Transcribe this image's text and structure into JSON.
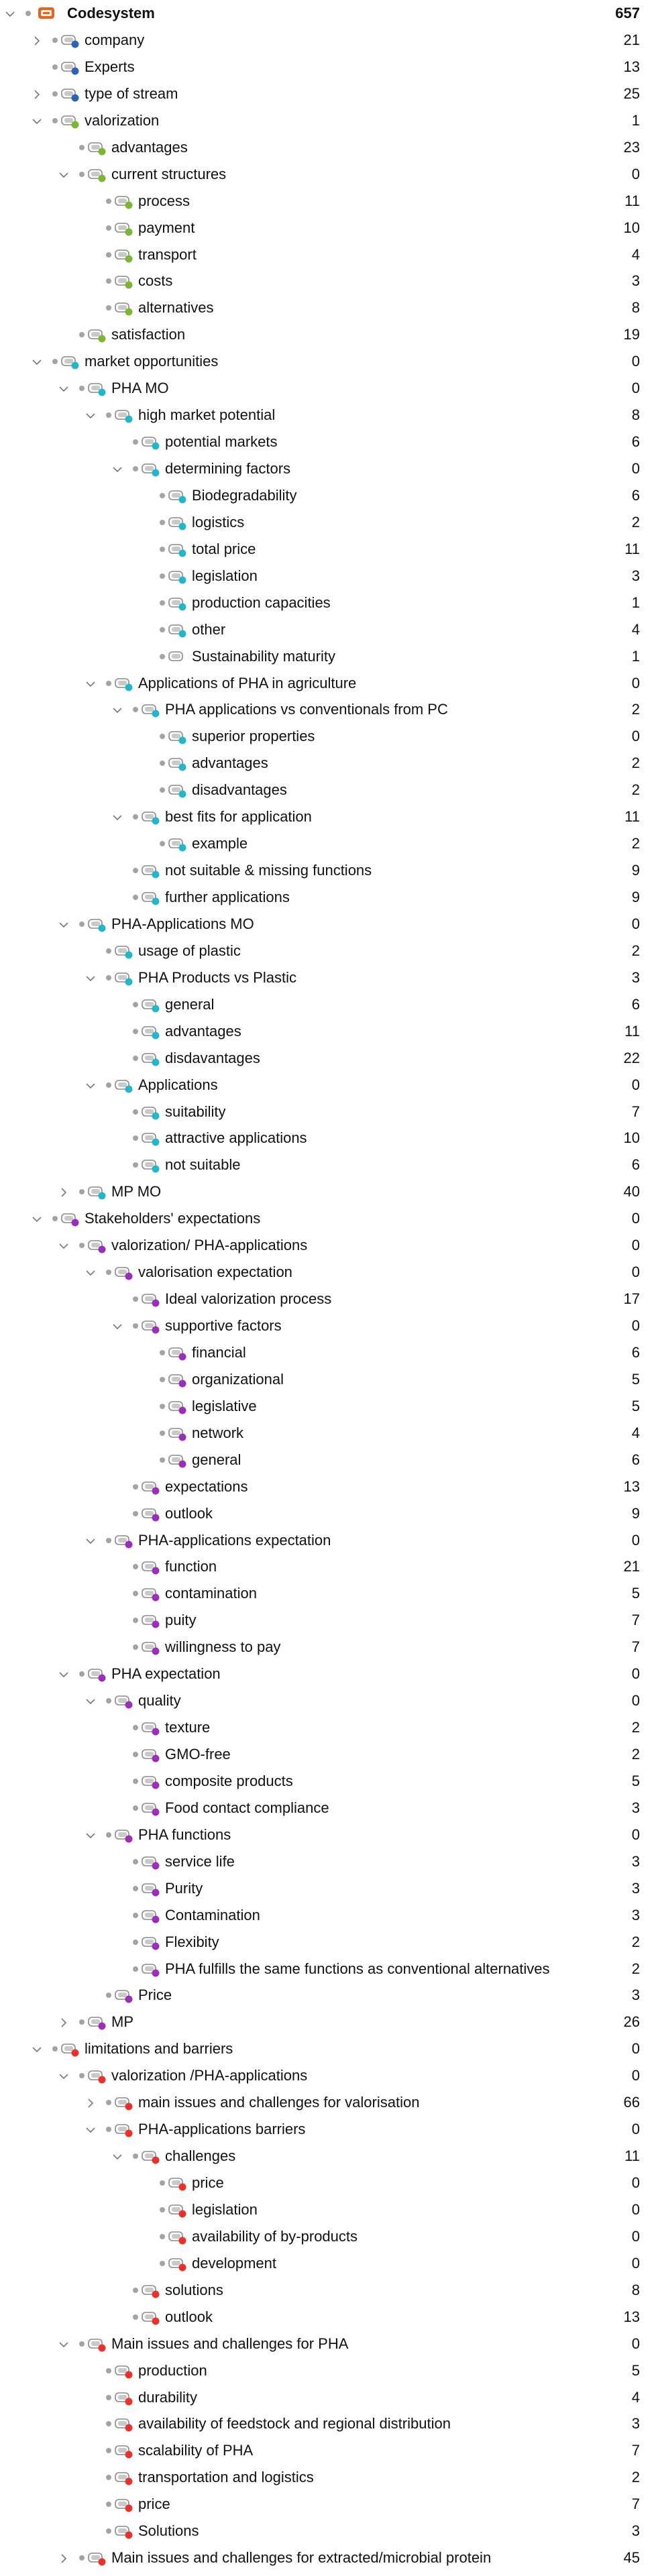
{
  "root": {
    "label": "Codesystem",
    "count": "657"
  },
  "colors": {
    "orange": "#e8641e",
    "blue": "#2f63b8",
    "green": "#7cb82f",
    "cyan": "#22b8c8",
    "purple": "#9b2fb8",
    "red": "#e8322a"
  },
  "items": [
    {
      "level": 1,
      "chevron": "right",
      "label": "company",
      "count": "21",
      "color": "blue"
    },
    {
      "level": 1,
      "chevron": "none",
      "label": "Experts",
      "count": "13",
      "color": "blue"
    },
    {
      "level": 1,
      "chevron": "right",
      "label": "type of stream",
      "count": "25",
      "color": "blue"
    },
    {
      "level": 1,
      "chevron": "down",
      "label": "valorization",
      "count": "1",
      "color": "green"
    },
    {
      "level": 2,
      "chevron": "none",
      "label": "advantages",
      "count": "23",
      "color": "green"
    },
    {
      "level": 2,
      "chevron": "down",
      "label": "current structures",
      "count": "0",
      "color": "green"
    },
    {
      "level": 3,
      "chevron": "none",
      "label": "process",
      "count": "11",
      "color": "green"
    },
    {
      "level": 3,
      "chevron": "none",
      "label": "payment",
      "count": "10",
      "color": "green"
    },
    {
      "level": 3,
      "chevron": "none",
      "label": "transport",
      "count": "4",
      "color": "green"
    },
    {
      "level": 3,
      "chevron": "none",
      "label": "costs",
      "count": "3",
      "color": "green"
    },
    {
      "level": 3,
      "chevron": "none",
      "label": "alternatives",
      "count": "8",
      "color": "green"
    },
    {
      "level": 2,
      "chevron": "none",
      "label": "satisfaction",
      "count": "19",
      "color": "green"
    },
    {
      "level": 1,
      "chevron": "down",
      "label": "market opportunities",
      "count": "0",
      "color": "cyan"
    },
    {
      "level": 2,
      "chevron": "down",
      "label": "PHA MO",
      "count": "0",
      "color": "cyan"
    },
    {
      "level": 3,
      "chevron": "down",
      "label": "high market potential",
      "count": "8",
      "color": "cyan"
    },
    {
      "level": 4,
      "chevron": "none",
      "label": "potential markets",
      "count": "6",
      "color": "cyan"
    },
    {
      "level": 4,
      "chevron": "down",
      "label": "determining factors",
      "count": "0",
      "color": "cyan"
    },
    {
      "level": 5,
      "chevron": "none",
      "label": "Biodegradability",
      "count": "6",
      "color": "cyan"
    },
    {
      "level": 5,
      "chevron": "none",
      "label": "logistics",
      "count": "2",
      "color": "cyan"
    },
    {
      "level": 5,
      "chevron": "none",
      "label": "total price",
      "count": "11",
      "color": "cyan"
    },
    {
      "level": 5,
      "chevron": "none",
      "label": "legislation",
      "count": "3",
      "color": "cyan"
    },
    {
      "level": 5,
      "chevron": "none",
      "label": "production capacities",
      "count": "1",
      "color": "cyan"
    },
    {
      "level": 5,
      "chevron": "none",
      "label": "other",
      "count": "4",
      "color": "cyan"
    },
    {
      "level": 5,
      "chevron": "none",
      "label": "Sustainability maturity",
      "count": "1",
      "color": "none"
    },
    {
      "level": 3,
      "chevron": "down",
      "label": "Applications of PHA in agriculture",
      "count": "0",
      "color": "cyan"
    },
    {
      "level": 4,
      "chevron": "down",
      "label": "PHA applications vs conventionals from PC",
      "count": "2",
      "color": "cyan"
    },
    {
      "level": 5,
      "chevron": "none",
      "label": "superior properties",
      "count": "0",
      "color": "cyan"
    },
    {
      "level": 5,
      "chevron": "none",
      "label": "advantages",
      "count": "2",
      "color": "cyan"
    },
    {
      "level": 5,
      "chevron": "none",
      "label": "disadvantages",
      "count": "2",
      "color": "cyan"
    },
    {
      "level": 4,
      "chevron": "down",
      "label": "best fits for application",
      "count": "11",
      "color": "cyan"
    },
    {
      "level": 5,
      "chevron": "none",
      "label": "example",
      "count": "2",
      "color": "cyan"
    },
    {
      "level": 4,
      "chevron": "none",
      "label": "not suitable & missing functions",
      "count": "9",
      "color": "cyan"
    },
    {
      "level": 4,
      "chevron": "none",
      "label": "further applications",
      "count": "9",
      "color": "cyan"
    },
    {
      "level": 2,
      "chevron": "down",
      "label": "PHA-Applications MO",
      "count": "0",
      "color": "cyan"
    },
    {
      "level": 3,
      "chevron": "none",
      "label": "usage of plastic",
      "count": "2",
      "color": "cyan"
    },
    {
      "level": 3,
      "chevron": "down",
      "label": "PHA Products vs Plastic",
      "count": "3",
      "color": "cyan"
    },
    {
      "level": 4,
      "chevron": "none",
      "label": "general",
      "count": "6",
      "color": "cyan"
    },
    {
      "level": 4,
      "chevron": "none",
      "label": "advantages",
      "count": "11",
      "color": "cyan"
    },
    {
      "level": 4,
      "chevron": "none",
      "label": "disdavantages",
      "count": "22",
      "color": "cyan"
    },
    {
      "level": 3,
      "chevron": "down",
      "label": "Applications",
      "count": "0",
      "color": "cyan"
    },
    {
      "level": 4,
      "chevron": "none",
      "label": "suitability",
      "count": "7",
      "color": "cyan"
    },
    {
      "level": 4,
      "chevron": "none",
      "label": "attractive applications",
      "count": "10",
      "color": "cyan"
    },
    {
      "level": 4,
      "chevron": "none",
      "label": "not suitable",
      "count": "6",
      "color": "cyan"
    },
    {
      "level": 2,
      "chevron": "right",
      "label": "MP MO",
      "count": "40",
      "color": "cyan"
    },
    {
      "level": 1,
      "chevron": "down",
      "label": "Stakeholders' expectations",
      "count": "0",
      "color": "purple"
    },
    {
      "level": 2,
      "chevron": "down",
      "label": "valorization/ PHA-applications",
      "count": "0",
      "color": "purple"
    },
    {
      "level": 3,
      "chevron": "down",
      "label": "valorisation expectation",
      "count": "0",
      "color": "purple"
    },
    {
      "level": 4,
      "chevron": "none",
      "label": "Ideal valorization process",
      "count": "17",
      "color": "purple"
    },
    {
      "level": 4,
      "chevron": "down",
      "label": "supportive factors",
      "count": "0",
      "color": "purple"
    },
    {
      "level": 5,
      "chevron": "none",
      "label": "financial",
      "count": "6",
      "color": "purple"
    },
    {
      "level": 5,
      "chevron": "none",
      "label": "organizational",
      "count": "5",
      "color": "purple"
    },
    {
      "level": 5,
      "chevron": "none",
      "label": "legislative",
      "count": "5",
      "color": "purple"
    },
    {
      "level": 5,
      "chevron": "none",
      "label": "network",
      "count": "4",
      "color": "purple"
    },
    {
      "level": 5,
      "chevron": "none",
      "label": "general",
      "count": "6",
      "color": "purple"
    },
    {
      "level": 4,
      "chevron": "none",
      "label": "expectations",
      "count": "13",
      "color": "purple"
    },
    {
      "level": 4,
      "chevron": "none",
      "label": "outlook",
      "count": "9",
      "color": "purple"
    },
    {
      "level": 3,
      "chevron": "down",
      "label": "PHA-applications expectation",
      "count": "0",
      "color": "purple"
    },
    {
      "level": 4,
      "chevron": "none",
      "label": "function",
      "count": "21",
      "color": "purple"
    },
    {
      "level": 4,
      "chevron": "none",
      "label": "contamination",
      "count": "5",
      "color": "purple"
    },
    {
      "level": 4,
      "chevron": "none",
      "label": "puity",
      "count": "7",
      "color": "purple"
    },
    {
      "level": 4,
      "chevron": "none",
      "label": "willingness to pay",
      "count": "7",
      "color": "purple"
    },
    {
      "level": 2,
      "chevron": "down",
      "label": "PHA expectation",
      "count": "0",
      "color": "purple"
    },
    {
      "level": 3,
      "chevron": "down",
      "label": "quality",
      "count": "0",
      "color": "purple"
    },
    {
      "level": 4,
      "chevron": "none",
      "label": "texture",
      "count": "2",
      "color": "purple"
    },
    {
      "level": 4,
      "chevron": "none",
      "label": "GMO-free",
      "count": "2",
      "color": "purple"
    },
    {
      "level": 4,
      "chevron": "none",
      "label": "composite products",
      "count": "5",
      "color": "purple"
    },
    {
      "level": 4,
      "chevron": "none",
      "label": "Food contact compliance",
      "count": "3",
      "color": "purple"
    },
    {
      "level": 3,
      "chevron": "down",
      "label": "PHA functions",
      "count": "0",
      "color": "purple"
    },
    {
      "level": 4,
      "chevron": "none",
      "label": "service life",
      "count": "3",
      "color": "purple"
    },
    {
      "level": 4,
      "chevron": "none",
      "label": "Purity",
      "count": "3",
      "color": "purple"
    },
    {
      "level": 4,
      "chevron": "none",
      "label": "Contamination",
      "count": "3",
      "color": "purple"
    },
    {
      "level": 4,
      "chevron": "none",
      "label": "Flexibity",
      "count": "2",
      "color": "purple"
    },
    {
      "level": 4,
      "chevron": "none",
      "label": "PHA fulfills the same functions as conventional alternatives",
      "count": "2",
      "color": "purple"
    },
    {
      "level": 3,
      "chevron": "none",
      "label": "Price",
      "count": "3",
      "color": "purple"
    },
    {
      "level": 2,
      "chevron": "right",
      "label": "MP",
      "count": "26",
      "color": "purple"
    },
    {
      "level": 1,
      "chevron": "down",
      "label": "limitations and barriers",
      "count": "0",
      "color": "red"
    },
    {
      "level": 2,
      "chevron": "down",
      "label": "valorization /PHA-applications",
      "count": "0",
      "color": "red"
    },
    {
      "level": 3,
      "chevron": "right",
      "label": "main issues and challenges for valorisation",
      "count": "66",
      "color": "red"
    },
    {
      "level": 3,
      "chevron": "down",
      "label": "PHA-applications barriers",
      "count": "0",
      "color": "red"
    },
    {
      "level": 4,
      "chevron": "down",
      "label": "challenges",
      "count": "11",
      "color": "red"
    },
    {
      "level": 5,
      "chevron": "none",
      "label": "price",
      "count": "0",
      "color": "red"
    },
    {
      "level": 5,
      "chevron": "none",
      "label": "legislation",
      "count": "0",
      "color": "red"
    },
    {
      "level": 5,
      "chevron": "none",
      "label": "availability of by-products",
      "count": "0",
      "color": "red"
    },
    {
      "level": 5,
      "chevron": "none",
      "label": "development",
      "count": "0",
      "color": "red"
    },
    {
      "level": 4,
      "chevron": "none",
      "label": "solutions",
      "count": "8",
      "color": "red"
    },
    {
      "level": 4,
      "chevron": "none",
      "label": "outlook",
      "count": "13",
      "color": "red"
    },
    {
      "level": 2,
      "chevron": "down",
      "label": "Main issues and challenges for PHA",
      "count": "0",
      "color": "red"
    },
    {
      "level": 3,
      "chevron": "none",
      "label": "production",
      "count": "5",
      "color": "red"
    },
    {
      "level": 3,
      "chevron": "none",
      "label": "durability",
      "count": "4",
      "color": "red"
    },
    {
      "level": 3,
      "chevron": "none",
      "label": "availability of feedstock and regional distribution",
      "count": "3",
      "color": "red"
    },
    {
      "level": 3,
      "chevron": "none",
      "label": "scalability of PHA",
      "count": "7",
      "color": "red"
    },
    {
      "level": 3,
      "chevron": "none",
      "label": "transportation and logistics",
      "count": "2",
      "color": "red"
    },
    {
      "level": 3,
      "chevron": "none",
      "label": "price",
      "count": "7",
      "color": "red"
    },
    {
      "level": 3,
      "chevron": "none",
      "label": "Solutions",
      "count": "3",
      "color": "red"
    },
    {
      "level": 2,
      "chevron": "right",
      "label": "Main issues and challenges for extracted/microbial protein",
      "count": "45",
      "color": "red"
    }
  ]
}
